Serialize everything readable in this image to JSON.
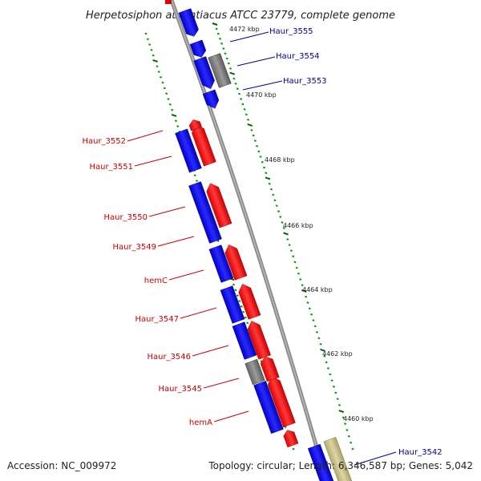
{
  "title": "Herpetosiphon aurantiacus ATCC 23779, complete genome",
  "footer": {
    "accession": "Accession: NC_009972",
    "stats": "Topology: circular; Length: 6,346,587 bp; Genes: 5,042"
  },
  "colors": {
    "forward_strand": "#ff0000",
    "reverse_strand": "#0000ff",
    "other_feature": "#808080",
    "rna_feature": "#c8c08a",
    "forward_label": "#cc0000",
    "reverse_label": "#000099",
    "backbone": "#888888",
    "tick_minor": "#009900",
    "tick_major": "#006600"
  },
  "ticks": [
    "4472 kbp",
    "4470 kbp",
    "4468 kbp",
    "4466 kbp",
    "4464 kbp",
    "4462 kbp",
    "4460 kbp"
  ],
  "genes_reverse": [
    {
      "label": "Haur_3555",
      "color": "reverse"
    },
    {
      "label": "Haur_3554",
      "color": "other"
    },
    {
      "label": "Haur_3553",
      "color": "reverse"
    },
    {
      "label": "Haur_3542",
      "color": "reverse"
    }
  ],
  "genes_forward": [
    {
      "label": "Haur_3552"
    },
    {
      "label": "Haur_3551"
    },
    {
      "label": "Haur_3550"
    },
    {
      "label": "Haur_3549"
    },
    {
      "label": "hemC"
    },
    {
      "label": "Haur_3547"
    },
    {
      "label": "Haur_3546"
    },
    {
      "label": "Haur_3545"
    },
    {
      "label": "hemA"
    }
  ]
}
